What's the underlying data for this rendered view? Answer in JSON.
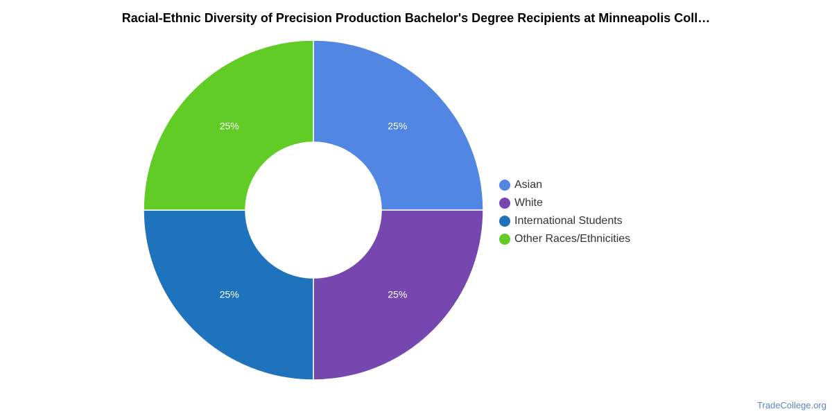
{
  "chart_data": {
    "type": "pie",
    "title": "Racial-Ethnic Diversity of Precision Production Bachelor's Degree Recipients at Minneapolis Coll…",
    "categories": [
      "Asian",
      "White",
      "International Students",
      "Other Races/Ethnicities"
    ],
    "values": [
      25,
      25,
      25,
      25
    ],
    "labels": [
      "25%",
      "25%",
      "25%",
      "25%"
    ],
    "colors": [
      "#5186e3",
      "#7747b0",
      "#1f72bc",
      "#60cc25"
    ],
    "donut": true,
    "legend_position": "right"
  },
  "source": "TradeCollege.org"
}
